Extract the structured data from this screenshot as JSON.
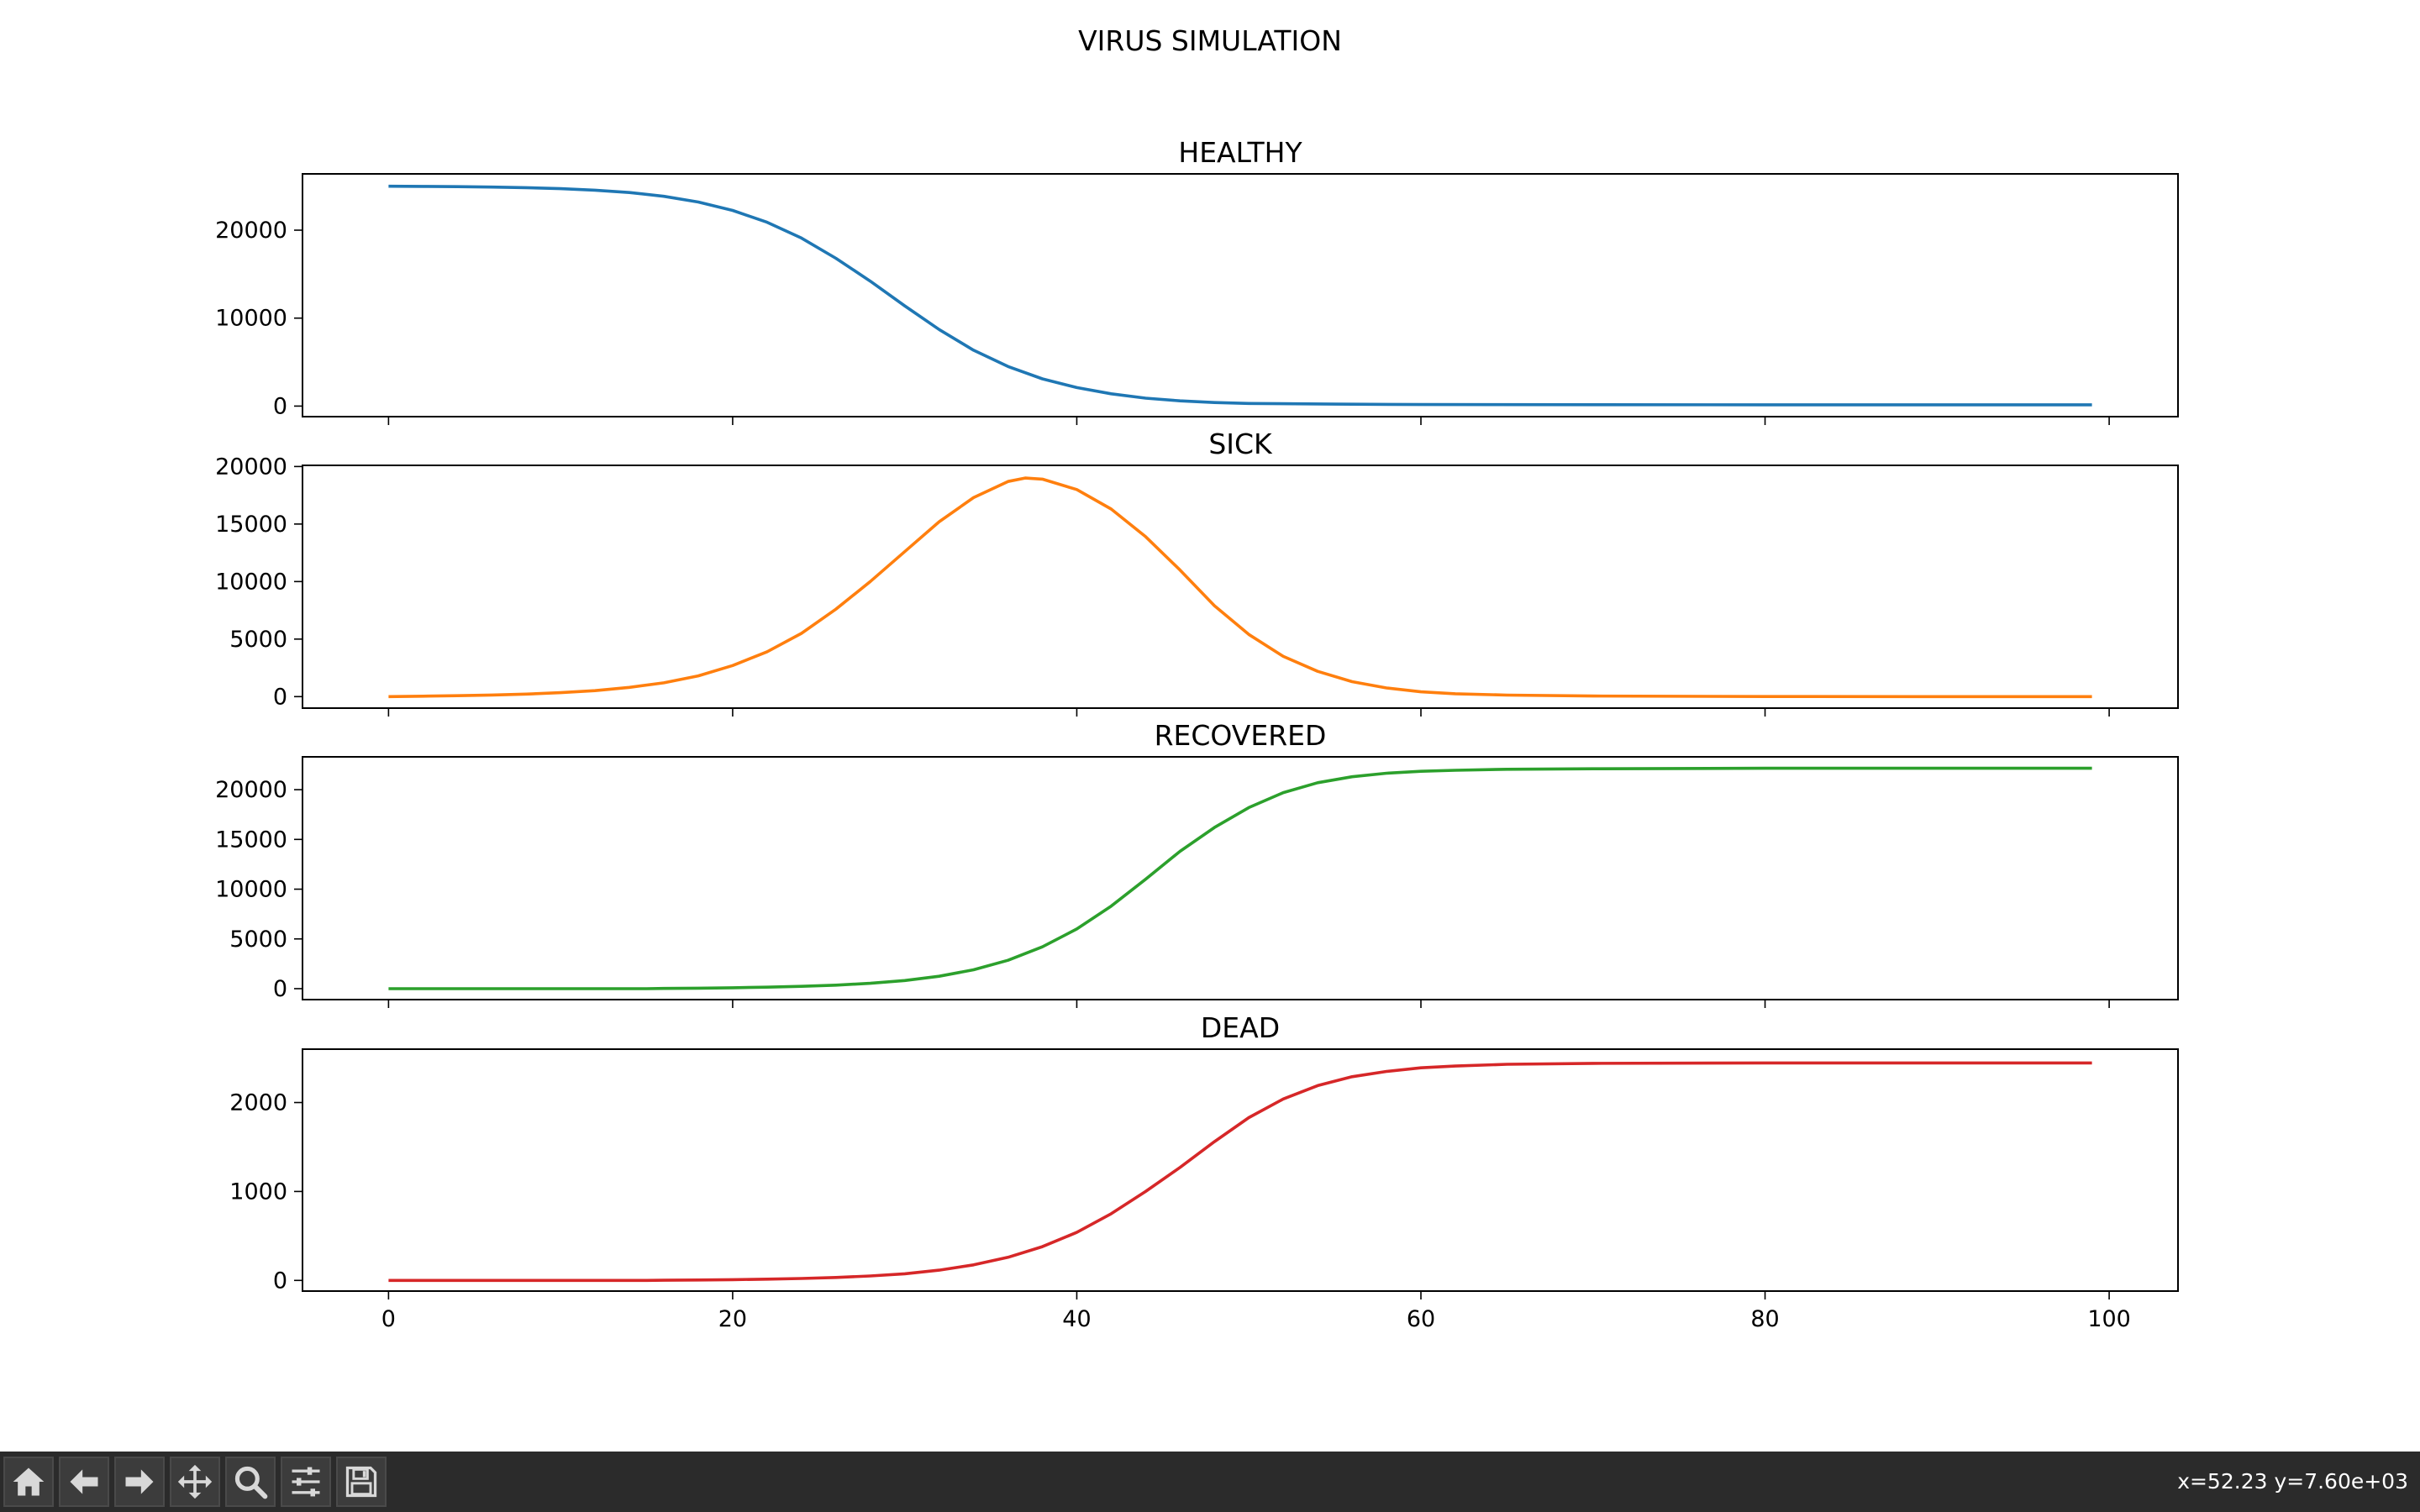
{
  "figure": {
    "suptitle": "VIRUS SIMULATION"
  },
  "toolbar": {
    "buttons": [
      {
        "name": "home-button",
        "icon": "home-icon"
      },
      {
        "name": "back-button",
        "icon": "arrow-left-icon"
      },
      {
        "name": "forward-button",
        "icon": "arrow-right-icon"
      },
      {
        "name": "pan-button",
        "icon": "move-icon"
      },
      {
        "name": "zoom-button",
        "icon": "magnifier-icon"
      },
      {
        "name": "configure-subplots-button",
        "icon": "sliders-icon"
      },
      {
        "name": "save-button",
        "icon": "floppy-disk-icon"
      }
    ],
    "coords": "x=52.23 y=7.60e+03"
  },
  "chart_data": [
    {
      "type": "line",
      "title": "HEALTHY",
      "color": "#1f77b4",
      "xlim": [
        -5,
        104
      ],
      "ylim": [
        -1200,
        26400
      ],
      "yticks": [
        0,
        10000,
        20000
      ],
      "xticks": [
        0,
        20,
        40,
        60,
        80,
        100
      ],
      "show_xticklabels": false,
      "x": [
        0,
        2,
        4,
        6,
        8,
        10,
        12,
        14,
        16,
        18,
        20,
        22,
        24,
        26,
        28,
        30,
        32,
        34,
        36,
        38,
        40,
        42,
        44,
        46,
        48,
        50,
        55,
        60,
        70,
        80,
        90,
        99
      ],
      "y": [
        25000,
        24980,
        24950,
        24900,
        24830,
        24720,
        24550,
        24280,
        23850,
        23200,
        22250,
        20900,
        19100,
        16800,
        14200,
        11400,
        8700,
        6350,
        4500,
        3100,
        2100,
        1400,
        900,
        600,
        400,
        300,
        220,
        180,
        160,
        150,
        150,
        150
      ]
    },
    {
      "type": "line",
      "title": "SICK",
      "color": "#ff7f0e",
      "xlim": [
        -5,
        104
      ],
      "ylim": [
        -1000,
        20100
      ],
      "yticks": [
        0,
        5000,
        10000,
        15000,
        20000
      ],
      "xticks": [
        0,
        20,
        40,
        60,
        80,
        100
      ],
      "show_xticklabels": false,
      "x": [
        0,
        2,
        4,
        6,
        8,
        10,
        12,
        14,
        16,
        18,
        20,
        22,
        24,
        26,
        28,
        30,
        32,
        34,
        36,
        37,
        38,
        40,
        42,
        44,
        46,
        48,
        50,
        52,
        54,
        56,
        58,
        60,
        62,
        65,
        70,
        80,
        90,
        99
      ],
      "y": [
        0,
        40,
        80,
        140,
        220,
        340,
        520,
        800,
        1200,
        1800,
        2700,
        3900,
        5500,
        7600,
        10000,
        12600,
        15200,
        17300,
        18700,
        19000,
        18900,
        18000,
        16300,
        13900,
        11000,
        7900,
        5400,
        3500,
        2200,
        1300,
        750,
        420,
        250,
        130,
        50,
        10,
        0,
        0
      ]
    },
    {
      "type": "line",
      "title": "RECOVERED",
      "color": "#2ca02c",
      "xlim": [
        -5,
        104
      ],
      "ylim": [
        -1100,
        23300
      ],
      "yticks": [
        0,
        5000,
        10000,
        15000,
        20000
      ],
      "xticks": [
        0,
        20,
        40,
        60,
        80,
        100
      ],
      "show_xticklabels": false,
      "x": [
        0,
        5,
        10,
        15,
        16,
        18,
        20,
        22,
        24,
        26,
        28,
        30,
        32,
        34,
        36,
        38,
        40,
        42,
        44,
        46,
        48,
        50,
        52,
        54,
        56,
        58,
        60,
        62,
        65,
        70,
        80,
        90,
        99
      ],
      "y": [
        0,
        0,
        0,
        0,
        20,
        50,
        90,
        150,
        230,
        350,
        540,
        820,
        1250,
        1900,
        2850,
        4200,
        6000,
        8300,
        11000,
        13800,
        16200,
        18200,
        19700,
        20700,
        21300,
        21650,
        21850,
        21950,
        22050,
        22100,
        22150,
        22150,
        22150
      ]
    },
    {
      "type": "line",
      "title": "DEAD",
      "color": "#d62728",
      "xlim": [
        -5,
        104
      ],
      "ylim": [
        -120,
        2600
      ],
      "yticks": [
        0,
        1000,
        2000
      ],
      "xticks": [
        0,
        20,
        40,
        60,
        80,
        100
      ],
      "show_xticklabels": true,
      "x": [
        0,
        5,
        10,
        15,
        16,
        18,
        20,
        22,
        24,
        26,
        28,
        30,
        32,
        34,
        36,
        38,
        40,
        42,
        44,
        46,
        48,
        50,
        52,
        54,
        56,
        58,
        60,
        62,
        65,
        70,
        80,
        90,
        99
      ],
      "y": [
        0,
        0,
        0,
        0,
        2,
        5,
        8,
        14,
        22,
        33,
        50,
        75,
        115,
        175,
        260,
        380,
        540,
        750,
        1000,
        1270,
        1560,
        1830,
        2040,
        2190,
        2290,
        2350,
        2390,
        2410,
        2430,
        2440,
        2445,
        2445,
        2445
      ]
    }
  ]
}
